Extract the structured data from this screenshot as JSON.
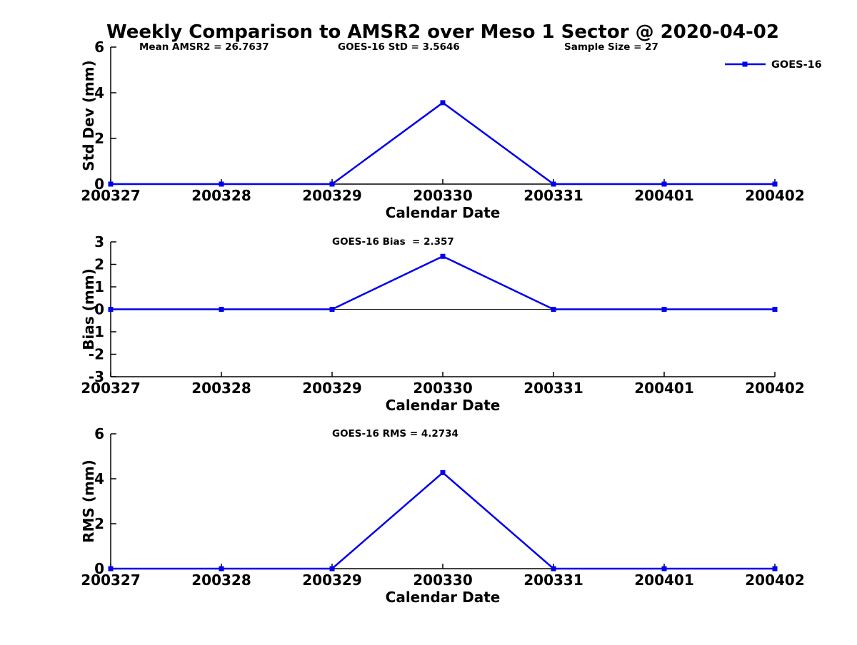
{
  "figure": {
    "title": "Weekly Comparison to AMSR2 over Meso 1 Sector @ 2020-04-02",
    "background": "#ffffff",
    "text_color": "#000000",
    "stats": {
      "mean_amsr2": 26.7637,
      "goes16_std": 3.5646,
      "sample_size": 27,
      "goes16_bias": 2.357,
      "goes16_rms": 4.2734
    }
  },
  "chart_data": [
    {
      "type": "line",
      "subplot": "std-dev",
      "categories": [
        "200327",
        "200328",
        "200329",
        "200330",
        "200331",
        "200401",
        "200402"
      ],
      "series": [
        {
          "name": "GOES-16",
          "color": "#0000ee",
          "marker": "square",
          "values": [
            0,
            0,
            0,
            3.5646,
            0,
            0,
            0
          ]
        }
      ],
      "xlabel": "Calendar Date",
      "ylabel": "Std Dev (mm)",
      "ylim": [
        0,
        6
      ],
      "yticks": [
        0,
        2,
        4,
        6
      ],
      "grid": false,
      "annotations": [
        {
          "text": "Mean AMSR2 = 26.7637",
          "x": 195
        },
        {
          "text": "GOES-16 StD = 3.5646",
          "x": 473
        },
        {
          "text": "Sample Size = 27",
          "x": 790
        }
      ],
      "legend": {
        "label": "GOES-16",
        "position": "top-right-outside"
      }
    },
    {
      "type": "line",
      "subplot": "bias",
      "categories": [
        "200327",
        "200328",
        "200329",
        "200330",
        "200331",
        "200401",
        "200402"
      ],
      "series": [
        {
          "name": "GOES-16",
          "color": "#0000ee",
          "marker": "square",
          "values": [
            0,
            0,
            0,
            2.357,
            0,
            0,
            0
          ]
        }
      ],
      "xlabel": "Calendar Date",
      "ylabel": "Bias (mm)",
      "ylim": [
        -3,
        3
      ],
      "yticks": [
        -3,
        -2,
        -1,
        0,
        1,
        2,
        3
      ],
      "zero_line": true,
      "grid": false,
      "annotations": [
        {
          "text": "GOES-16 Bias  = 2.357",
          "x": 465
        }
      ]
    },
    {
      "type": "line",
      "subplot": "rms",
      "categories": [
        "200327",
        "200328",
        "200329",
        "200330",
        "200331",
        "200401",
        "200402"
      ],
      "series": [
        {
          "name": "GOES-16",
          "color": "#0000ee",
          "marker": "square",
          "values": [
            0,
            0,
            0,
            4.2734,
            0,
            0,
            0
          ]
        }
      ],
      "xlabel": "Calendar Date",
      "ylabel": "RMS (mm)",
      "ylim": [
        0,
        6
      ],
      "yticks": [
        0,
        2,
        4,
        6
      ],
      "grid": false,
      "annotations": [
        {
          "text": "GOES-16 RMS = 4.2734",
          "x": 465
        }
      ]
    }
  ]
}
